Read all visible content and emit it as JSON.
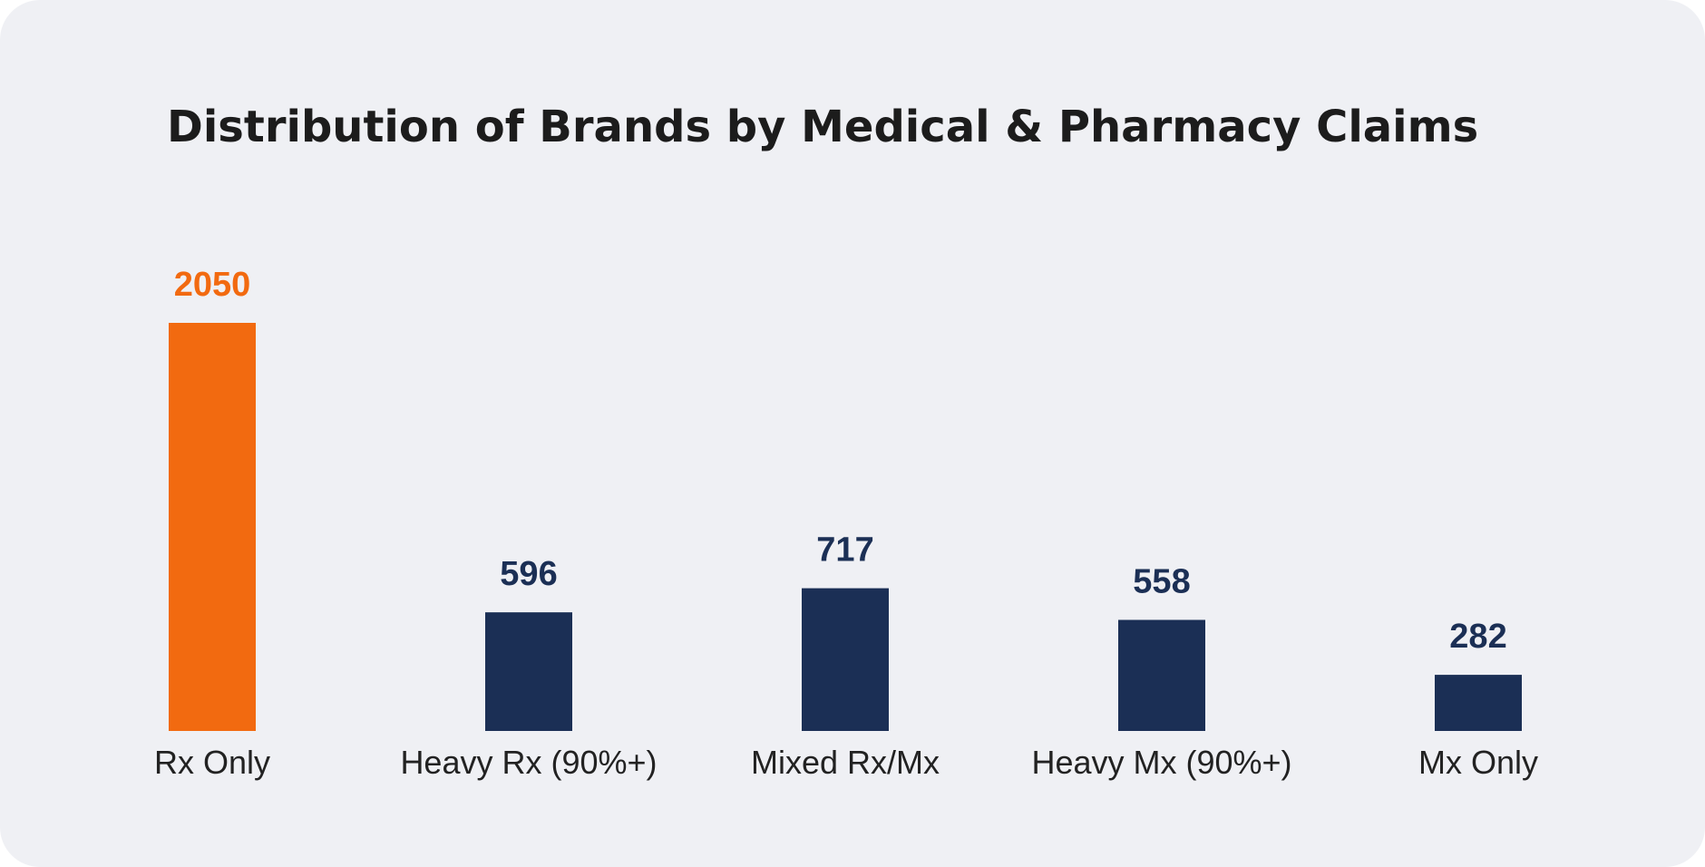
{
  "chart_data": {
    "type": "bar",
    "title": "Distribution of Brands by Medical & Pharmacy Claims",
    "xlabel": "",
    "ylabel": "",
    "grid": false,
    "categories": [
      "Rx Only",
      "Heavy Rx (90%+)",
      "Mixed Rx/Mx",
      "Heavy Mx (90%+)",
      "Mx Only"
    ],
    "values": [
      2050,
      596,
      717,
      558,
      282
    ],
    "ylim": [
      0,
      2050
    ],
    "bar_colors": [
      "#f26a10",
      "#1b2f55",
      "#1b2f55",
      "#1b2f55",
      "#1b2f55"
    ],
    "label_colors": [
      "#f26a10",
      "#1b2f55",
      "#1b2f55",
      "#1b2f55",
      "#1b2f55"
    ]
  },
  "colors": {
    "background": "#eff0f4",
    "highlight": "#f26a10",
    "primary": "#1b2f55",
    "title": "#1c1c1c"
  }
}
